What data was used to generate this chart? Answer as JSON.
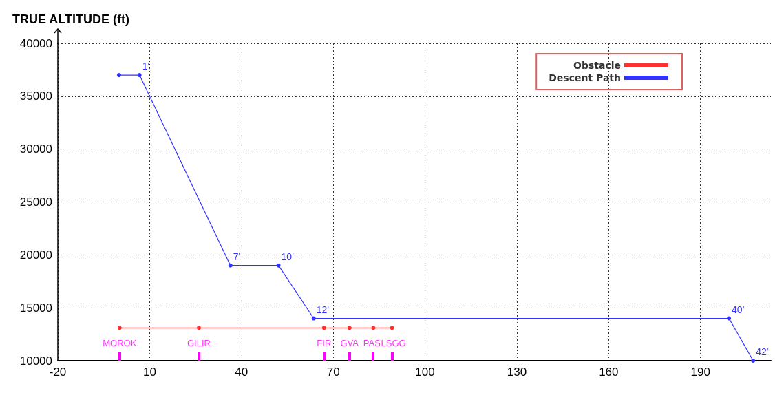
{
  "chart_data": {
    "type": "line",
    "ylabel": "TRUE ALTITUDE (ft)",
    "xlim": [
      -20,
      213
    ],
    "xticks": [
      -20,
      10,
      40,
      70,
      100,
      130,
      160,
      190
    ],
    "ylim": [
      10000,
      40000
    ],
    "yticks": [
      10000,
      15000,
      20000,
      25000,
      30000,
      35000,
      40000
    ],
    "grid": true,
    "legend": "top right",
    "marker": "circle",
    "line_style": "solid",
    "series": [
      {
        "name": "Obstacle",
        "color": "#ff3030",
        "x": [
          0.2,
          26.1,
          67,
          75.3,
          83.1,
          89.2
        ],
        "values": [
          13100,
          13100,
          13100,
          13100,
          13100,
          13100
        ],
        "value_labels": [
          "MOROK",
          "GILIR",
          "FIR",
          "GVA",
          "PAS",
          "LSGG"
        ]
      },
      {
        "name": "Descent Path",
        "color": "#3333ff",
        "x": [
          0,
          6.7,
          36.4,
          52.1,
          63.6,
          199.3,
          207.2
        ],
        "values": [
          37000,
          37000,
          19000,
          19000,
          14000,
          14000,
          10000
        ]
      }
    ],
    "annotations": [
      {
        "text": "1'",
        "x": 6.7,
        "y": 37000
      },
      {
        "text": "7'",
        "x": 36.4,
        "y": 19000
      },
      {
        "text": "10'",
        "x": 52.1,
        "y": 19000
      },
      {
        "text": "12'",
        "x": 63.6,
        "y": 14000
      },
      {
        "text": "40'",
        "x": 199.3,
        "y": 14000
      },
      {
        "text": "42'",
        "x": 207.2,
        "y": 10000
      }
    ]
  }
}
